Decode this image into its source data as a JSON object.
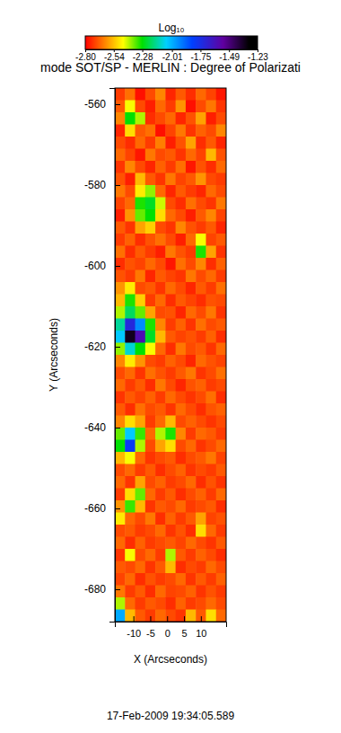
{
  "chart_data": {
    "type": "heatmap",
    "title": "mode SOT/SP - MERLIN : Degree of Polarizati",
    "x_label": "X (Arcseconds)",
    "y_label": "Y (Arcseconds)",
    "annotations": [
      "17-Feb-2009 19:34:05.589"
    ],
    "xlim": [
      -15.5,
      17.5
    ],
    "ylim": [
      -688,
      -556
    ],
    "xticks": [
      -10,
      -5,
      0,
      5,
      10
    ],
    "yticks": [
      -560,
      -580,
      -600,
      -620,
      -640,
      -660,
      -680
    ],
    "colorbar": {
      "title": "Log₁₀",
      "range": [
        -2.8,
        -1.23
      ],
      "ticks": [
        {
          "value": -2.8,
          "label": "-2.80"
        },
        -2.54,
        -2.28,
        -2.01,
        -1.75,
        -1.49,
        -1.23
      ]
    },
    "x": [
      -14,
      -11,
      -8,
      -5,
      -2,
      1,
      4,
      7,
      10,
      13,
      16
    ],
    "y": [
      -557.5,
      -560.5,
      -563.5,
      -566.5,
      -569.5,
      -572.5,
      -575.5,
      -578.5,
      -581.5,
      -584.5,
      -587.5,
      -590.5,
      -593.5,
      -596.5,
      -599.5,
      -602.5,
      -605.5,
      -608.5,
      -611.5,
      -614.5,
      -617.5,
      -620.5,
      -623.5,
      -626.5,
      -629.5,
      -632.5,
      -635.5,
      -638.5,
      -641.5,
      -644.5,
      -647.5,
      -650.5,
      -653.5,
      -656.5,
      -659.5,
      -662.5,
      -665.5,
      -668.5,
      -671.5,
      -674.5,
      -677.5,
      -680.5,
      -683.5,
      -686.5
    ],
    "cells": [
      [
        -2.72,
        -2.65,
        -2.78,
        -2.7,
        -2.62,
        -2.75,
        -2.68,
        -2.74,
        -2.66,
        -2.71,
        -2.77
      ],
      [
        -2.68,
        -2.45,
        -2.7,
        -2.76,
        -2.66,
        -2.72,
        -2.6,
        -2.78,
        -2.7,
        -2.64,
        -2.73
      ],
      [
        -2.62,
        -2.28,
        -2.4,
        -2.74,
        -2.7,
        -2.66,
        -2.75,
        -2.69,
        -2.58,
        -2.76,
        -2.7
      ],
      [
        -2.75,
        -2.5,
        -2.68,
        -2.65,
        -2.78,
        -2.71,
        -2.64,
        -2.73,
        -2.67,
        -2.7,
        -2.62
      ],
      [
        -2.7,
        -2.74,
        -2.66,
        -2.72,
        -2.63,
        -2.76,
        -2.69,
        -2.58,
        -2.74,
        -2.68,
        -2.75
      ],
      [
        -2.66,
        -2.71,
        -2.77,
        -2.64,
        -2.7,
        -2.68,
        -2.73,
        -2.66,
        -2.71,
        -2.55,
        -2.69
      ],
      [
        -2.73,
        -2.62,
        -2.7,
        -2.75,
        -2.67,
        -2.72,
        -2.65,
        -2.77,
        -2.69,
        -2.74,
        -2.66
      ],
      [
        -2.69,
        -2.76,
        -2.55,
        -2.68,
        -2.73,
        -2.64,
        -2.71,
        -2.68,
        -2.6,
        -2.7,
        -2.72
      ],
      [
        -2.64,
        -2.7,
        -2.48,
        -2.38,
        -2.66,
        -2.75,
        -2.68,
        -2.72,
        -2.75,
        -2.66,
        -2.7
      ],
      [
        -2.71,
        -2.66,
        -2.3,
        -2.25,
        -2.42,
        -2.7,
        -2.74,
        -2.65,
        -2.7,
        -2.73,
        -2.64
      ],
      [
        -2.76,
        -2.6,
        -2.35,
        -2.28,
        -2.5,
        -2.66,
        -2.7,
        -2.76,
        -2.68,
        -2.62,
        -2.71
      ],
      [
        -2.68,
        -2.73,
        -2.58,
        -2.52,
        -2.7,
        -2.73,
        -2.62,
        -2.69,
        -2.72,
        -2.68,
        -2.75
      ],
      [
        -2.72,
        -2.67,
        -2.74,
        -2.69,
        -2.65,
        -2.7,
        -2.76,
        -2.66,
        -2.45,
        -2.71,
        -2.68
      ],
      [
        -2.65,
        -2.74,
        -2.68,
        -2.72,
        -2.76,
        -2.64,
        -2.69,
        -2.72,
        -2.3,
        -2.58,
        -2.73
      ],
      [
        -2.74,
        -2.69,
        -2.71,
        -2.66,
        -2.7,
        -2.77,
        -2.65,
        -2.7,
        -2.62,
        -2.74,
        -2.67
      ],
      [
        -2.69,
        -2.72,
        -2.64,
        -2.75,
        -2.68,
        -2.71,
        -2.73,
        -2.64,
        -2.7,
        -2.66,
        -2.72
      ],
      [
        -2.6,
        -2.48,
        -2.7,
        -2.68,
        -2.73,
        -2.66,
        -2.7,
        -2.75,
        -2.68,
        -2.72,
        -2.65
      ],
      [
        -2.55,
        -2.3,
        -2.52,
        -2.72,
        -2.66,
        -2.74,
        -2.68,
        -2.71,
        -2.74,
        -2.69,
        -2.7
      ],
      [
        -2.4,
        -2.2,
        -2.35,
        -2.58,
        -2.7,
        -2.69,
        -2.75,
        -2.66,
        -2.7,
        -2.64,
        -2.73
      ],
      [
        -2.15,
        -1.72,
        -1.95,
        -2.3,
        -2.62,
        -2.72,
        -2.67,
        -2.73,
        -2.65,
        -2.7,
        -2.68
      ],
      [
        -2.05,
        -1.35,
        -1.6,
        -2.25,
        -2.55,
        -2.68,
        -2.71,
        -2.69,
        -2.72,
        -2.67,
        -2.74
      ],
      [
        -2.38,
        -2.1,
        -2.28,
        -2.45,
        -2.66,
        -2.74,
        -2.64,
        -2.7,
        -2.68,
        -2.73,
        -2.66
      ],
      [
        -2.62,
        -2.48,
        -2.6,
        -2.7,
        -2.72,
        -2.67,
        -2.7,
        -2.75,
        -2.66,
        -2.69,
        -2.71
      ],
      [
        -2.7,
        -2.66,
        -2.73,
        -2.65,
        -2.69,
        -2.72,
        -2.68,
        -2.64,
        -2.73,
        -2.7,
        -2.65
      ],
      [
        -2.66,
        -2.72,
        -2.68,
        -2.74,
        -2.64,
        -2.7,
        -2.75,
        -2.69,
        -2.67,
        -2.72,
        -2.7
      ],
      [
        -2.73,
        -2.68,
        -2.71,
        -2.67,
        -2.72,
        -2.66,
        -2.7,
        -2.73,
        -2.7,
        -2.65,
        -2.74
      ],
      [
        -2.68,
        -2.74,
        -2.65,
        -2.7,
        -2.68,
        -2.73,
        -2.66,
        -2.7,
        -2.74,
        -2.69,
        -2.67
      ],
      [
        -2.62,
        -2.5,
        -2.58,
        -2.72,
        -2.66,
        -2.55,
        -2.7,
        -2.67,
        -2.7,
        -2.73,
        -2.7
      ],
      [
        -2.35,
        -2.05,
        -2.32,
        -2.66,
        -2.4,
        -2.3,
        -2.62,
        -2.72,
        -2.66,
        -2.68,
        -2.72
      ],
      [
        -2.28,
        -1.8,
        -2.4,
        -2.7,
        -2.58,
        -2.5,
        -2.7,
        -2.66,
        -2.73,
        -2.7,
        -2.66
      ],
      [
        -2.55,
        -2.45,
        -2.66,
        -2.73,
        -2.7,
        -2.68,
        -2.74,
        -2.7,
        -2.68,
        -2.64,
        -2.71
      ],
      [
        -2.7,
        -2.66,
        -2.72,
        -2.68,
        -2.74,
        -2.7,
        -2.67,
        -2.73,
        -2.7,
        -2.72,
        -2.68
      ],
      [
        -2.66,
        -2.73,
        -2.58,
        -2.7,
        -2.67,
        -2.72,
        -2.7,
        -2.66,
        -2.74,
        -2.69,
        -2.73
      ],
      [
        -2.72,
        -2.5,
        -2.35,
        -2.66,
        -2.72,
        -2.68,
        -2.74,
        -2.7,
        -2.67,
        -2.72,
        -2.66
      ],
      [
        -2.6,
        -2.32,
        -2.55,
        -2.73,
        -2.68,
        -2.7,
        -2.66,
        -2.72,
        -2.7,
        -2.68,
        -2.74
      ],
      [
        -2.48,
        -2.66,
        -2.7,
        -2.64,
        -2.74,
        -2.67,
        -2.72,
        -2.68,
        -2.58,
        -2.71,
        -2.69
      ],
      [
        -2.7,
        -2.68,
        -2.72,
        -2.7,
        -2.66,
        -2.73,
        -2.69,
        -2.74,
        -2.5,
        -2.66,
        -2.72
      ],
      [
        -2.66,
        -2.74,
        -2.67,
        -2.72,
        -2.7,
        -2.68,
        -2.71,
        -2.66,
        -2.7,
        -2.73,
        -2.68
      ],
      [
        -2.73,
        -2.45,
        -2.7,
        -2.66,
        -2.72,
        -2.4,
        -2.68,
        -2.72,
        -2.67,
        -2.7,
        -2.74
      ],
      [
        -2.68,
        -2.7,
        -2.66,
        -2.73,
        -2.68,
        -2.55,
        -2.74,
        -2.7,
        -2.72,
        -2.66,
        -2.7
      ],
      [
        -2.71,
        -2.66,
        -2.74,
        -2.69,
        -2.72,
        -2.7,
        -2.66,
        -2.73,
        -2.68,
        -2.72,
        -2.67
      ],
      [
        -2.64,
        -2.72,
        -2.68,
        -2.74,
        -2.66,
        -2.71,
        -2.7,
        -2.67,
        -2.73,
        -2.69,
        -2.72
      ],
      [
        -2.4,
        -2.66,
        -2.72,
        -2.68,
        -2.7,
        -2.74,
        -2.67,
        -2.72,
        -2.7,
        -2.66,
        -2.7
      ],
      [
        -2.0,
        -2.55,
        -2.68,
        -2.72,
        -2.66,
        -2.7,
        -2.73,
        -2.55,
        -2.68,
        -2.5,
        -2.66
      ]
    ]
  }
}
